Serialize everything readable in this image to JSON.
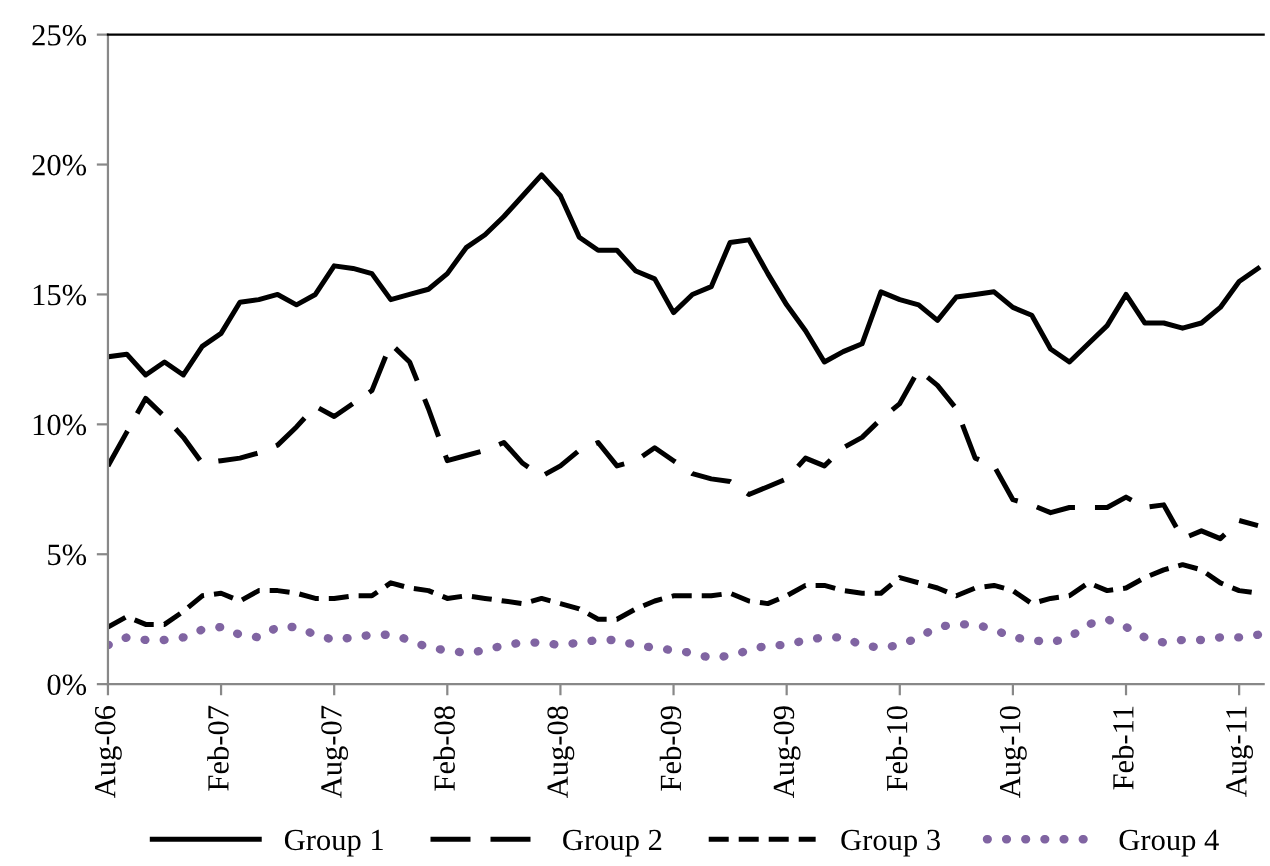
{
  "chart_data": {
    "type": "line",
    "categories": [
      "Aug-06",
      null,
      null,
      null,
      null,
      null,
      "Feb-07",
      null,
      null,
      null,
      null,
      null,
      "Aug-07",
      null,
      null,
      null,
      null,
      null,
      "Feb-08",
      null,
      null,
      null,
      null,
      null,
      "Aug-08",
      null,
      null,
      null,
      null,
      null,
      "Feb-09",
      null,
      null,
      null,
      null,
      null,
      "Aug-09",
      null,
      null,
      null,
      null,
      null,
      "Feb-10",
      null,
      null,
      null,
      null,
      null,
      "Aug-10",
      null,
      null,
      null,
      null,
      null,
      "Feb-11",
      null,
      null,
      null,
      null,
      null,
      "Aug-11",
      null
    ],
    "series": [
      {
        "name": "Group 1",
        "color": "#000000",
        "line_style": "solid",
        "values": [
          12.6,
          12.7,
          11.9,
          12.4,
          11.9,
          13.0,
          13.5,
          14.7,
          14.8,
          15.0,
          14.6,
          15.0,
          16.1,
          16.0,
          15.8,
          14.8,
          15.0,
          15.2,
          15.8,
          16.8,
          17.3,
          18.0,
          18.8,
          19.6,
          18.8,
          17.2,
          16.7,
          16.7,
          15.9,
          15.6,
          14.3,
          15.0,
          15.3,
          17.0,
          17.1,
          15.8,
          14.6,
          13.6,
          12.4,
          12.8,
          13.1,
          15.1,
          14.8,
          14.6,
          14.0,
          14.9,
          15.0,
          15.1,
          14.5,
          14.2,
          12.9,
          12.4,
          13.1,
          13.8,
          15.0,
          13.9,
          13.9,
          13.7,
          13.9,
          14.5,
          15.5,
          16.0
        ]
      },
      {
        "name": "Group 2",
        "color": "#000000",
        "line_style": "longdash",
        "values": [
          8.4,
          9.7,
          11.0,
          10.3,
          9.5,
          8.5,
          8.6,
          8.7,
          8.9,
          9.2,
          9.9,
          10.7,
          10.3,
          10.8,
          11.3,
          13.1,
          12.4,
          10.6,
          8.6,
          8.8,
          9.0,
          9.3,
          8.5,
          8.0,
          8.4,
          9.0,
          9.3,
          8.4,
          8.6,
          9.1,
          8.6,
          8.1,
          7.9,
          7.8,
          7.3,
          7.6,
          7.9,
          8.7,
          8.4,
          9.1,
          9.5,
          10.2,
          10.8,
          12.1,
          11.5,
          10.6,
          8.7,
          8.4,
          7.1,
          6.9,
          6.6,
          6.8,
          6.8,
          6.8,
          7.2,
          6.8,
          6.9,
          5.6,
          5.9,
          5.6,
          6.3,
          6.1
        ]
      },
      {
        "name": "Group 3",
        "color": "#000000",
        "line_style": "dashed",
        "values": [
          2.2,
          2.6,
          2.3,
          2.3,
          2.8,
          3.4,
          3.5,
          3.2,
          3.6,
          3.6,
          3.5,
          3.3,
          3.3,
          3.4,
          3.4,
          3.9,
          3.7,
          3.6,
          3.3,
          3.4,
          3.3,
          3.2,
          3.1,
          3.3,
          3.1,
          2.9,
          2.5,
          2.5,
          2.9,
          3.2,
          3.4,
          3.4,
          3.4,
          3.5,
          3.2,
          3.1,
          3.4,
          3.8,
          3.8,
          3.6,
          3.5,
          3.5,
          4.1,
          3.9,
          3.7,
          3.4,
          3.7,
          3.8,
          3.6,
          3.1,
          3.3,
          3.4,
          3.9,
          3.6,
          3.7,
          4.1,
          4.4,
          4.6,
          4.4,
          3.9,
          3.6,
          3.5
        ]
      },
      {
        "name": "Group 4",
        "color": "#8064a2",
        "line_style": "dotted",
        "values": [
          1.5,
          1.8,
          1.7,
          1.7,
          1.8,
          2.1,
          2.2,
          1.9,
          1.8,
          2.2,
          2.2,
          1.9,
          1.7,
          1.8,
          1.9,
          1.9,
          1.7,
          1.4,
          1.3,
          1.2,
          1.3,
          1.5,
          1.6,
          1.6,
          1.5,
          1.6,
          1.7,
          1.7,
          1.5,
          1.4,
          1.3,
          1.2,
          1.0,
          1.1,
          1.3,
          1.5,
          1.5,
          1.7,
          1.8,
          1.8,
          1.5,
          1.4,
          1.5,
          1.8,
          2.2,
          2.3,
          2.3,
          2.1,
          1.8,
          1.7,
          1.6,
          1.8,
          2.3,
          2.5,
          2.2,
          1.8,
          1.6,
          1.7,
          1.7,
          1.8,
          1.8,
          1.9
        ]
      }
    ],
    "ylim": [
      0,
      25
    ],
    "yticks": [
      {
        "value": 0,
        "label": "0%"
      },
      {
        "value": 5,
        "label": "5%"
      },
      {
        "value": 10,
        "label": "10%"
      },
      {
        "value": 15,
        "label": "15%"
      },
      {
        "value": 20,
        "label": "20%"
      },
      {
        "value": 25,
        "label": "25%"
      }
    ],
    "grid": false,
    "legend": "bottom"
  }
}
